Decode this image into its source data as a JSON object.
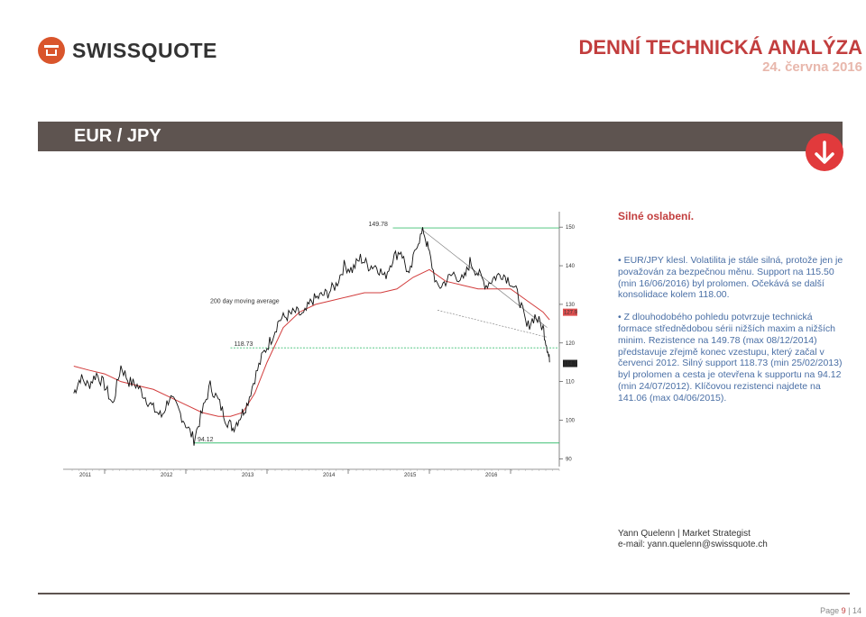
{
  "brand": {
    "name": "SWISSQUOTE"
  },
  "header": {
    "title": "DENNÍ TECHNICKÁ ANALÝZA",
    "date": "24. června 2016"
  },
  "banner": {
    "pair": "EUR / JPY"
  },
  "signal_icon": "arrow-down-icon",
  "colors": {
    "accent": "#c23e3e",
    "banner": "#5e5450",
    "arrow_bg": "#e13a3c",
    "support_line": "#3fbf73",
    "ma_line": "#d23c3c",
    "text_blue": "#4a6fa5"
  },
  "commentary": {
    "headline": "Silné oslabení.",
    "bullets": [
      "EUR/JPY klesl. Volatilita je stále silná, protože jen je považován za bezpečnou měnu. Support na 115.50 (min 16/06/2016) byl prolomen. Očekává se další konsolidace kolem 118.00.",
      "Z dlouhodobého pohledu potvrzuje technická formace střednědobou sérii nižších maxim a nižších minim. Rezistence na 149.78 (max 08/12/2014) představuje zřejmě konec vzestupu, který začal v červenci 2012. Silný support 118.73 (min 25/02/2013) byl prolomen a cesta je otevřena k supportu na 94.12 (min 24/07/2012). Klíčovou rezistenci najdete na 141.06 (max 04/06/2015)."
    ]
  },
  "author": {
    "line": "Yann Quelenn | Market Strategist",
    "email": "e-mail: yann.quelenn@swissquote.ch"
  },
  "page": {
    "current": "9",
    "separator": " | ",
    "total": "14",
    "label": "Page "
  },
  "chart_data": {
    "type": "line",
    "y_ticks": [
      "150",
      "140",
      "130",
      "120",
      "110",
      "100",
      "90"
    ],
    "ylim": [
      88,
      154
    ],
    "x_ticks": [
      "2011",
      "2012",
      "2013",
      "2014",
      "2015",
      "2016"
    ],
    "xlim": [
      2010.6,
      2016.6
    ],
    "x_tick_pos": [
      2011.0,
      2012.0,
      2013.0,
      2014.0,
      2015.0,
      2016.0
    ],
    "levels": [
      {
        "label": "149.78",
        "value": 149.78,
        "from": 2014.55
      },
      {
        "label": "118.73",
        "value": 118.73,
        "from": 2012.55
      },
      {
        "label": "94.12",
        "value": 94.12,
        "from": 2012.1
      }
    ],
    "price_labels": [
      {
        "label": "127.96",
        "value": 127.96
      },
      {
        "label": "114.70",
        "value": 114.7
      }
    ],
    "ma_label": "200 day moving average",
    "price_series": {
      "x": [
        2010.62,
        2010.7,
        2010.8,
        2010.9,
        2011.0,
        2011.1,
        2011.2,
        2011.3,
        2011.4,
        2011.5,
        2011.6,
        2011.7,
        2011.8,
        2011.9,
        2012.0,
        2012.1,
        2012.2,
        2012.3,
        2012.4,
        2012.5,
        2012.58,
        2012.67,
        2012.75,
        2012.85,
        2012.95,
        2013.05,
        2013.15,
        2013.25,
        2013.35,
        2013.45,
        2013.55,
        2013.65,
        2013.75,
        2013.85,
        2013.95,
        2014.05,
        2014.15,
        2014.25,
        2014.35,
        2014.45,
        2014.55,
        2014.65,
        2014.75,
        2014.85,
        2014.93,
        2015.0,
        2015.1,
        2015.2,
        2015.3,
        2015.42,
        2015.5,
        2015.6,
        2015.7,
        2015.8,
        2015.9,
        2016.0,
        2016.1,
        2016.2,
        2016.3,
        2016.4,
        2016.45,
        2016.48
      ],
      "y": [
        107,
        111,
        109,
        112,
        109,
        104,
        114,
        110,
        109,
        106,
        103,
        101,
        106,
        103,
        99,
        95,
        102,
        109,
        105,
        100,
        98,
        101,
        104,
        111,
        117,
        121,
        126,
        127,
        128,
        127,
        131,
        132,
        133,
        135,
        140,
        139,
        142,
        140,
        140,
        137,
        142,
        144,
        137,
        146,
        149,
        143,
        134,
        136,
        138,
        136,
        141,
        138,
        135,
        137,
        138,
        136,
        132,
        124,
        127,
        124,
        119,
        115
      ]
    },
    "ma_series": {
      "x": [
        2010.62,
        2010.8,
        2011.0,
        2011.2,
        2011.4,
        2011.6,
        2011.8,
        2012.0,
        2012.2,
        2012.4,
        2012.55,
        2012.7,
        2012.85,
        2013.0,
        2013.2,
        2013.4,
        2013.6,
        2013.8,
        2014.0,
        2014.2,
        2014.4,
        2014.6,
        2014.8,
        2015.0,
        2015.2,
        2015.4,
        2015.6,
        2015.8,
        2016.0,
        2016.2,
        2016.4,
        2016.48
      ],
      "y": [
        114,
        113,
        112,
        110,
        109,
        108,
        106,
        104,
        102,
        101,
        101,
        102,
        107,
        115,
        124,
        128,
        130,
        131,
        132,
        133,
        133,
        134,
        137,
        139,
        136,
        135,
        134,
        134,
        134,
        131,
        128,
        126
      ]
    },
    "trendlines": [
      {
        "x": [
          2014.9,
          2016.45
        ],
        "y": [
          149.5,
          124
        ]
      },
      {
        "x": [
          2015.1,
          2016.45
        ],
        "y": [
          128.5,
          121.5
        ]
      }
    ]
  }
}
